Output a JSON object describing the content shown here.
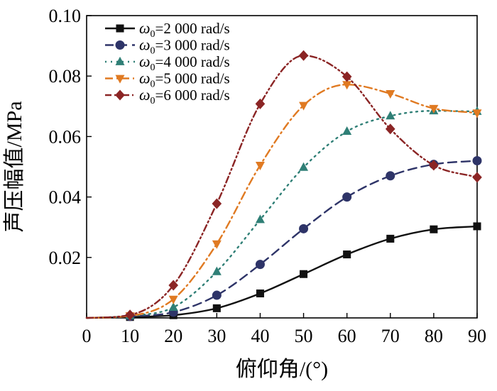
{
  "chart_data": {
    "type": "line",
    "title": "",
    "xlabel": "俯仰角/(°)",
    "ylabel": "声压幅值/MPa",
    "xlim": [
      0,
      90
    ],
    "ylim": [
      0,
      0.1
    ],
    "x_ticks": [
      "0",
      "10",
      "20",
      "30",
      "40",
      "50",
      "60",
      "70",
      "80",
      "90"
    ],
    "y_ticks": [
      "0.02",
      "0.04",
      "0.06",
      "0.08",
      "0.10"
    ],
    "grid": false,
    "legend_position": "top-left",
    "x": [
      0,
      10,
      20,
      30,
      40,
      50,
      60,
      70,
      80,
      90
    ],
    "series": [
      {
        "name": "ω0=2 000 rad/s",
        "legend_symbol": "ω",
        "legend_subscript": "0",
        "legend_value": "=2 000 rad/s",
        "color": "#111111",
        "marker": "square",
        "dash": "solid",
        "values": [
          0.0,
          0.0003,
          0.0009,
          0.0032,
          0.0081,
          0.0145,
          0.021,
          0.0262,
          0.0293,
          0.0303
        ]
      },
      {
        "name": "ω0=3 000 rad/s",
        "legend_symbol": "ω",
        "legend_subscript": "0",
        "legend_value": "=3 000 rad/s",
        "color": "#2e3468",
        "marker": "circle",
        "dash": "dash",
        "values": [
          0.0,
          0.0005,
          0.0019,
          0.0075,
          0.0177,
          0.0295,
          0.04,
          0.047,
          0.0508,
          0.052
        ]
      },
      {
        "name": "ω0=4 000 rad/s",
        "legend_symbol": "ω",
        "legend_subscript": "0",
        "legend_value": "=4 000 rad/s",
        "color": "#2f7f76",
        "marker": "triangle-up",
        "dash": "dot",
        "values": [
          0.0,
          0.0007,
          0.0035,
          0.0153,
          0.0325,
          0.0498,
          0.0617,
          0.0668,
          0.0685,
          0.0683
        ]
      },
      {
        "name": "ω0=5 000 rad/s",
        "legend_symbol": "ω",
        "legend_subscript": "0",
        "legend_value": "=5 000 rad/s",
        "color": "#e07a22",
        "marker": "triangle-down",
        "dash": "dashdot",
        "values": [
          0.0,
          0.0007,
          0.0062,
          0.0245,
          0.0505,
          0.0703,
          0.0772,
          0.0742,
          0.0693,
          0.0678
        ]
      },
      {
        "name": "ω0=6 000 rad/s",
        "legend_symbol": "ω",
        "legend_subscript": "0",
        "legend_value": "=6 000 rad/s",
        "color": "#8b2525",
        "marker": "diamond",
        "dash": "dashdotdot",
        "values": [
          0.0,
          0.001,
          0.0108,
          0.0378,
          0.0708,
          0.0868,
          0.0798,
          0.0625,
          0.0505,
          0.0465
        ]
      }
    ]
  }
}
